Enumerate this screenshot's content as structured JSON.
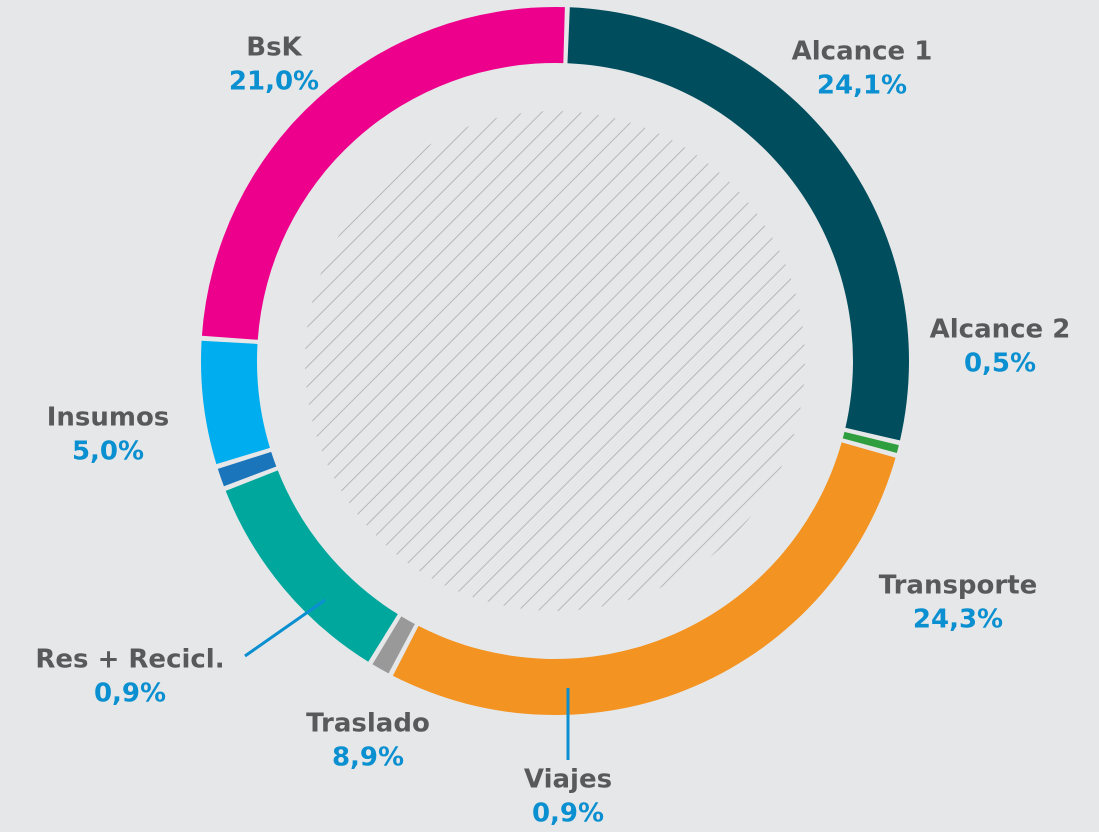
{
  "chart_data": {
    "type": "donut",
    "categories": [
      "Alcance 1",
      "Alcance 2",
      "Transporte",
      "Viajes",
      "Traslado",
      "Res + Recicl.",
      "Insumos",
      "BsK"
    ],
    "values": [
      24.1,
      0.5,
      24.3,
      0.9,
      8.9,
      0.9,
      5.0,
      21.0
    ],
    "value_labels": [
      "24,1%",
      "0,5%",
      "24,3%",
      "0,9%",
      "8,9%",
      "0,9%",
      "5,0%",
      "21,0%"
    ],
    "colors": [
      "#004d5e",
      "#2e9e3e",
      "#f39321",
      "#999999",
      "#00a79d",
      "#1a75bb",
      "#00aeef",
      "#ec008c"
    ]
  }
}
